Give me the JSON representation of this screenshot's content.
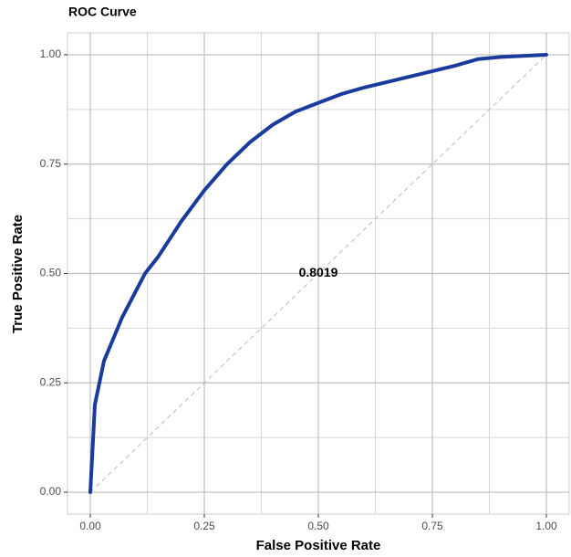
{
  "chart_data": {
    "type": "line",
    "title": "ROC Curve",
    "x_label": "False Positive Rate",
    "y_label": "True Positive Rate",
    "x": [
      0,
      0.005,
      0.01,
      0.02,
      0.03,
      0.05,
      0.07,
      0.1,
      0.12,
      0.15,
      0.2,
      0.25,
      0.3,
      0.35,
      0.4,
      0.45,
      0.5,
      0.55,
      0.6,
      0.7,
      0.8,
      0.85,
      0.9,
      1
    ],
    "series": [
      {
        "color": "#1a3a9e",
        "values": [
          0,
          0.1,
          0.2,
          0.25,
          0.3,
          0.35,
          0.4,
          0.46,
          0.5,
          0.54,
          0.62,
          0.69,
          0.75,
          0.8,
          0.84,
          0.87,
          0.89,
          0.91,
          0.925,
          0.95,
          0.975,
          0.99,
          0.995,
          1
        ]
      }
    ],
    "reference_line": {
      "x": [
        0,
        1
      ],
      "y": [
        0,
        1
      ],
      "color": "#bbbbbb"
    },
    "annotations": [
      {
        "text": "0.8019",
        "x": 0.5,
        "y": 0.5
      }
    ],
    "xlim": [
      -0.05,
      1.05
    ],
    "ylim": [
      -0.05,
      1.05
    ],
    "xticks": [
      {
        "value": 0,
        "label": "0.00"
      },
      {
        "value": 0.25,
        "label": "0.25"
      },
      {
        "value": 0.5,
        "label": "0.50"
      },
      {
        "value": 0.75,
        "label": "0.75"
      },
      {
        "value": 1,
        "label": "1.00"
      }
    ],
    "yticks": [
      {
        "value": 0,
        "label": "0.00"
      },
      {
        "value": 0.25,
        "label": "0.25"
      },
      {
        "value": 0.5,
        "label": "0.50"
      },
      {
        "value": 0.75,
        "label": "0.75"
      },
      {
        "value": 1,
        "label": "1.00"
      }
    ],
    "grid": true,
    "minor_grid": true
  }
}
